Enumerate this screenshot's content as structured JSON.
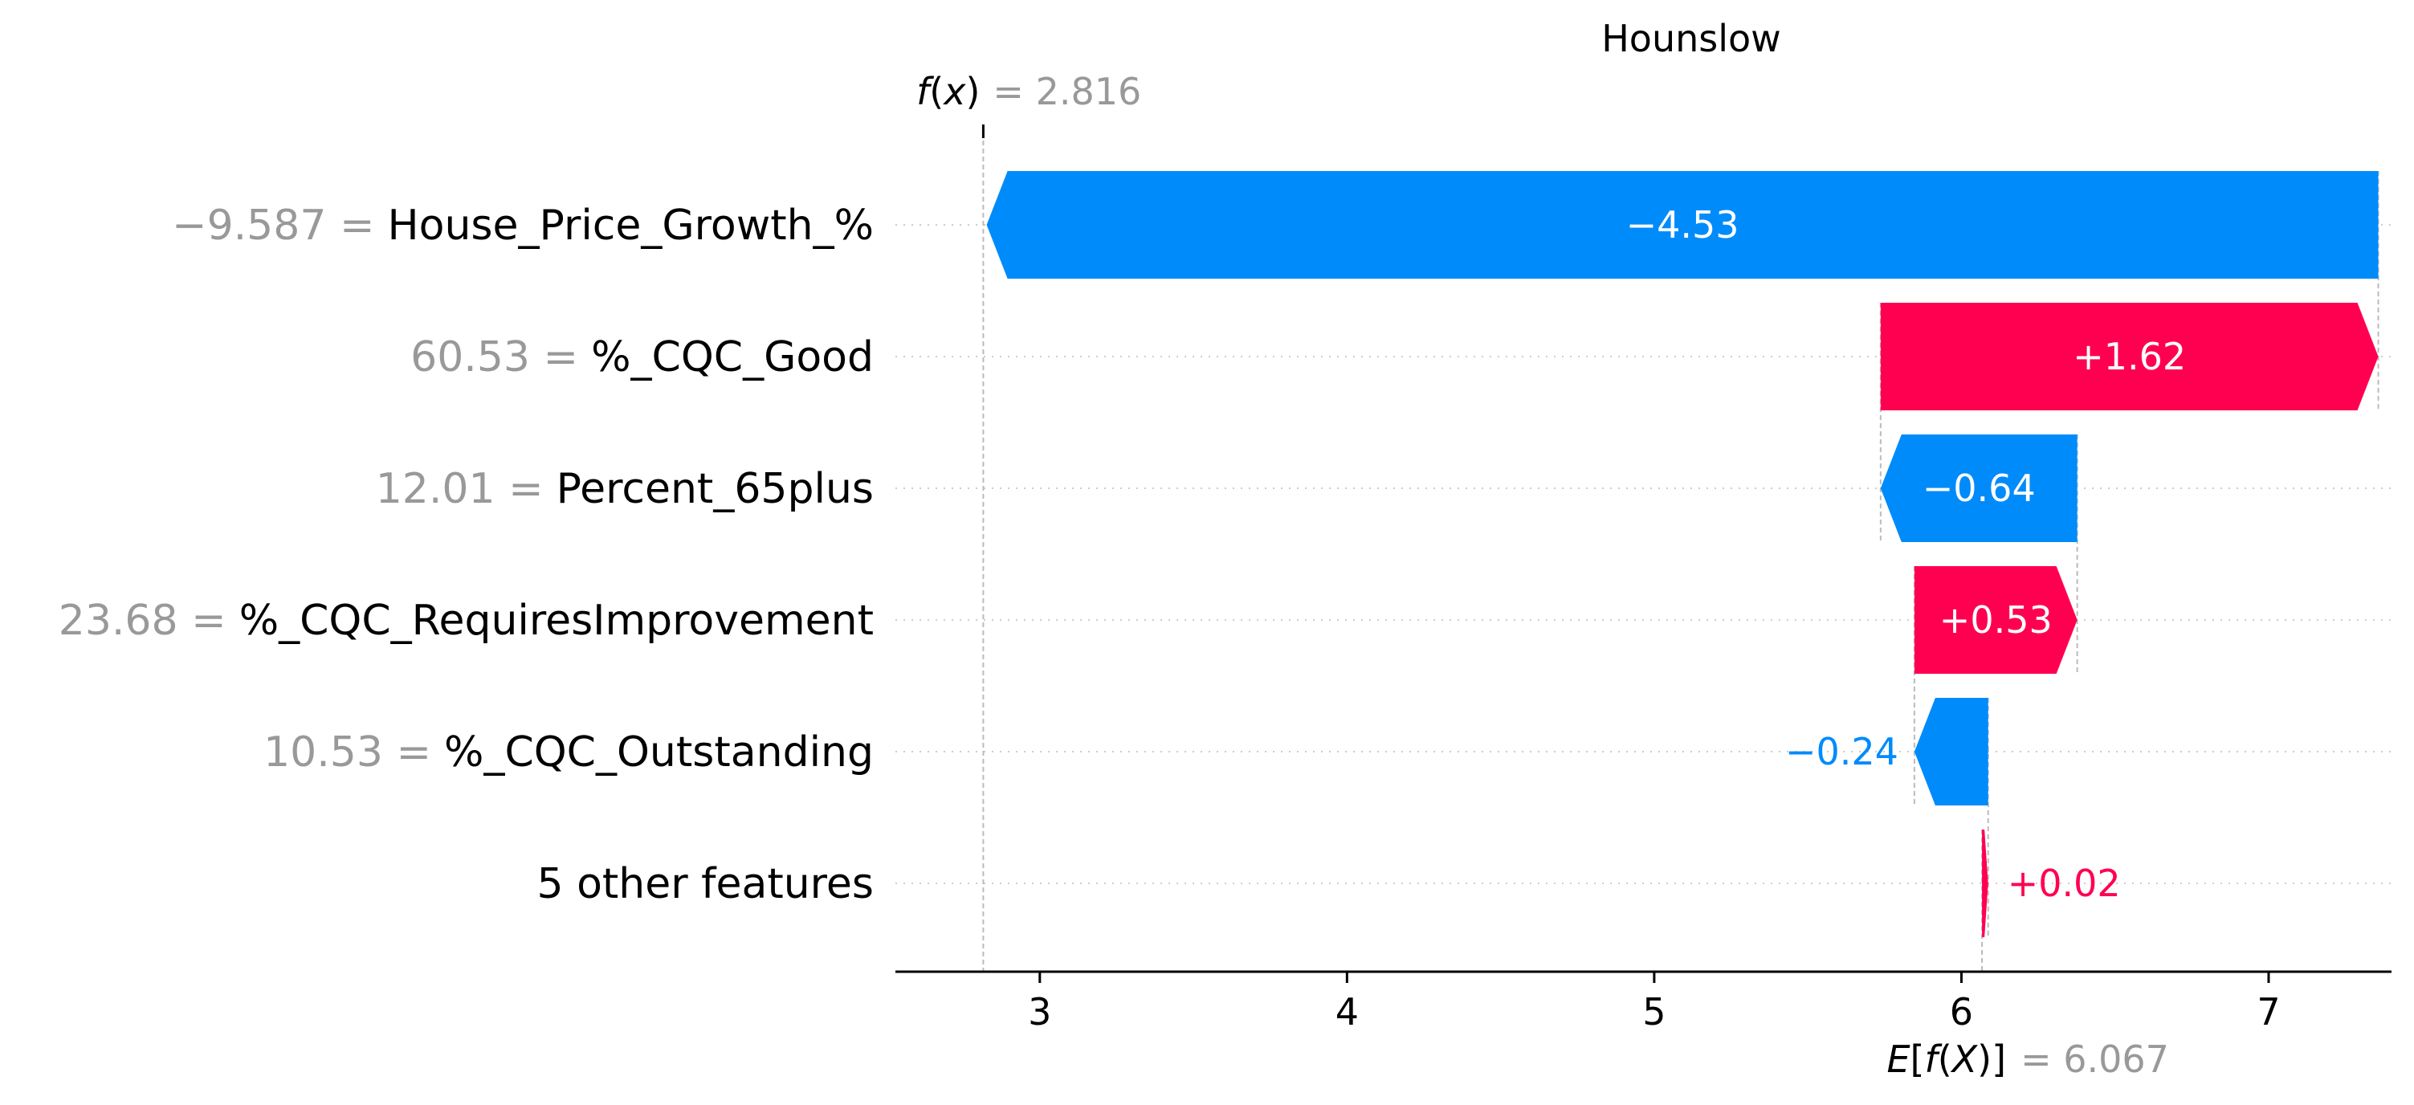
{
  "chart_data": {
    "type": "waterfall",
    "title": "Hounslow",
    "fx": {
      "value": 2.816,
      "label": "= 2.816"
    },
    "efx": {
      "value": 6.067,
      "label": "= 6.067"
    },
    "xlim": [
      2.53,
      7.4
    ],
    "xticks": [
      3,
      4,
      5,
      6,
      7
    ],
    "features": [
      {
        "value_label": "−9.587 =",
        "name": "House_Price_Growth_%",
        "contribution": -4.53,
        "label": "−4.53"
      },
      {
        "value_label": "60.53 =",
        "name": "%_CQC_Good",
        "contribution": 1.62,
        "label": "+1.62"
      },
      {
        "value_label": "12.01 =",
        "name": "Percent_65plus",
        "contribution": -0.64,
        "label": "−0.64"
      },
      {
        "value_label": "23.68 =",
        "name": "%_CQC_RequiresImprovement",
        "contribution": 0.53,
        "label": "+0.53"
      },
      {
        "value_label": "10.53 =",
        "name": "%_CQC_Outstanding",
        "contribution": -0.24,
        "label": "−0.24"
      },
      {
        "value_label": "",
        "name": "5 other features",
        "contribution": 0.02,
        "label": "+0.02"
      }
    ],
    "colors": {
      "positive": "#ff0051",
      "negative": "#008bfb",
      "muted": "#999999"
    }
  }
}
